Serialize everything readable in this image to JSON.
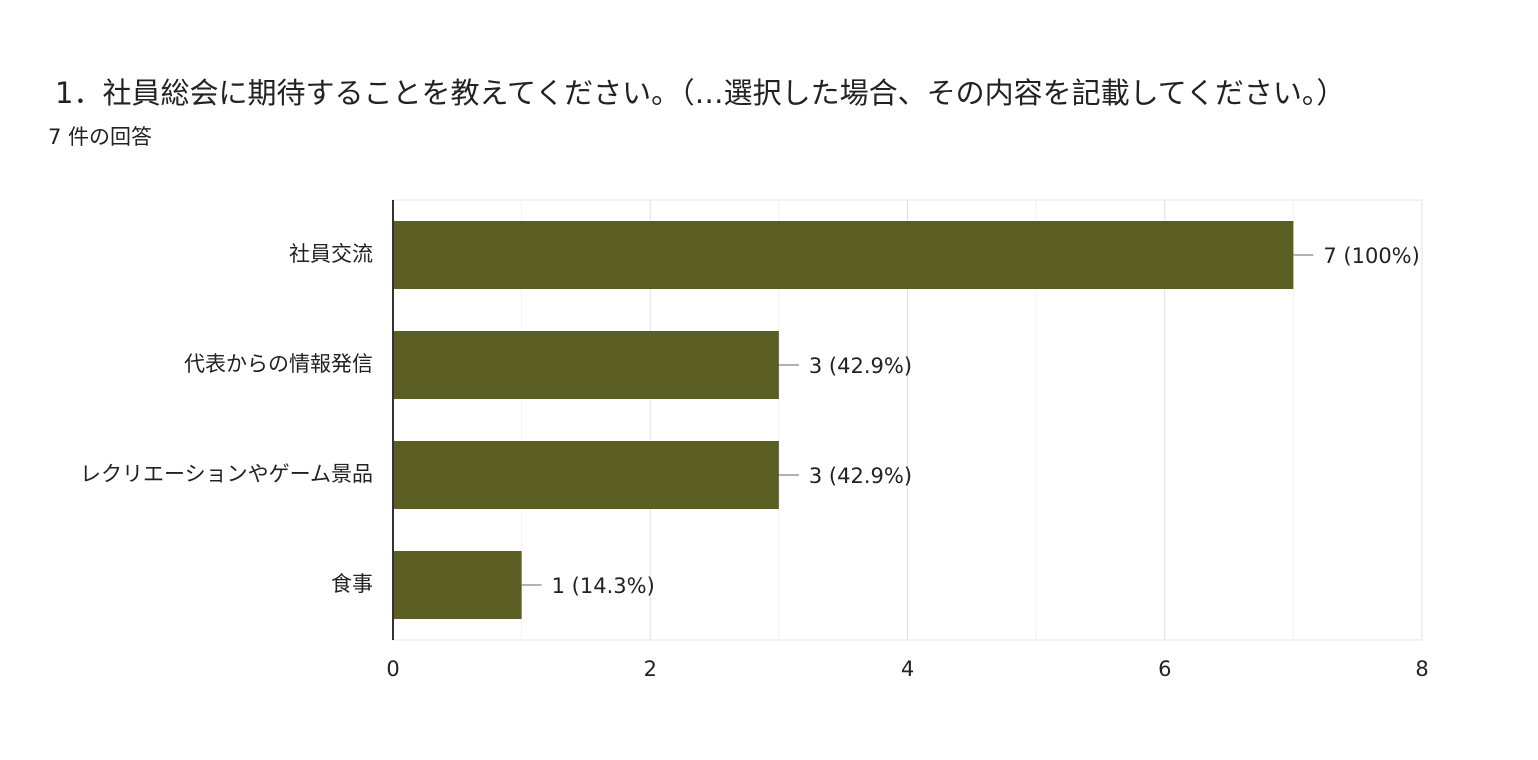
{
  "chart_data": {
    "type": "bar",
    "orientation": "horizontal",
    "title": "1．社員総会に期待することを教えてください。（…選択した場合、その内容を記載してください。）",
    "subtitle": "7 件の回答",
    "categories": [
      "社員交流",
      "代表からの情報発信",
      "レクリエーションやゲーム景品",
      "食事"
    ],
    "values": [
      7,
      3,
      3,
      1
    ],
    "value_labels": [
      "7 (100%)",
      "3 (42.9%)",
      "3 (42.9%)",
      "1 (14.3%)"
    ],
    "color": "#5b5e22",
    "xlim": [
      0,
      8
    ],
    "xticks": [
      0,
      2,
      4,
      6,
      8
    ],
    "grid": true,
    "minor_grid": true
  }
}
